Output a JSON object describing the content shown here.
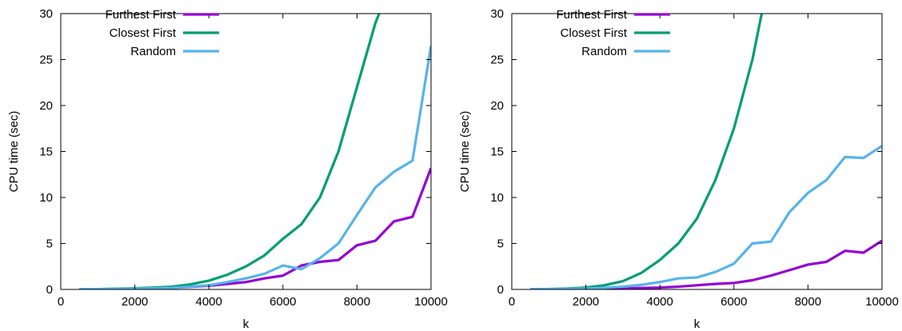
{
  "chart_data": [
    {
      "type": "line",
      "xlabel": "k",
      "ylabel": "CPU time (sec)",
      "xlim": [
        0,
        10000
      ],
      "ylim": [
        0,
        30
      ],
      "xticks": [
        "0",
        "2000",
        "4000",
        "6000",
        "8000",
        "10000"
      ],
      "yticks": [
        "0",
        "5",
        "10",
        "15",
        "20",
        "25",
        "30"
      ],
      "legend": "top-left",
      "grid": false,
      "series": [
        {
          "name": "Furthest First",
          "color": "#9400d3",
          "x": [
            500,
            1000,
            1500,
            2000,
            2500,
            3000,
            3500,
            4000,
            4500,
            5000,
            5500,
            6000,
            6500,
            7000,
            7500,
            8000,
            8500,
            9000,
            9500,
            10000
          ],
          "y": [
            0.02,
            0.03,
            0.05,
            0.08,
            0.12,
            0.18,
            0.28,
            0.4,
            0.6,
            0.8,
            1.2,
            1.5,
            2.6,
            3.0,
            3.2,
            4.8,
            5.3,
            7.4,
            7.9,
            13.2
          ]
        },
        {
          "name": "Closest First",
          "color": "#009e73",
          "x": [
            500,
            1000,
            1500,
            2000,
            2500,
            3000,
            3500,
            4000,
            4500,
            5000,
            5500,
            6000,
            6500,
            7000,
            7500,
            8000,
            8500,
            8600
          ],
          "y": [
            0.02,
            0.04,
            0.08,
            0.12,
            0.2,
            0.3,
            0.55,
            0.95,
            1.6,
            2.5,
            3.7,
            5.5,
            7.1,
            10.0,
            15.0,
            22.0,
            29.0,
            30.0
          ]
        },
        {
          "name": "Random",
          "color": "#56b4e9",
          "x": [
            500,
            1000,
            1500,
            2000,
            2500,
            3000,
            3500,
            4000,
            4500,
            5000,
            5500,
            6000,
            6500,
            7000,
            7500,
            8000,
            8500,
            9000,
            9500,
            10000
          ],
          "y": [
            0.02,
            0.03,
            0.05,
            0.08,
            0.12,
            0.18,
            0.3,
            0.45,
            0.8,
            1.2,
            1.7,
            2.6,
            2.2,
            3.4,
            5.0,
            8.1,
            11.1,
            12.8,
            14.0,
            26.5
          ]
        }
      ]
    },
    {
      "type": "line",
      "xlabel": "k",
      "ylabel": "CPU time (sec)",
      "xlim": [
        0,
        10000
      ],
      "ylim": [
        0,
        30
      ],
      "xticks": [
        "0",
        "2000",
        "4000",
        "6000",
        "8000",
        "10000"
      ],
      "yticks": [
        "0",
        "5",
        "10",
        "15",
        "20",
        "25",
        "30"
      ],
      "legend": "top-left",
      "grid": false,
      "series": [
        {
          "name": "Furthest First",
          "color": "#9400d3",
          "x": [
            500,
            1000,
            1500,
            2000,
            2500,
            3000,
            3500,
            4000,
            4500,
            5000,
            5500,
            6000,
            6500,
            7000,
            7500,
            8000,
            8500,
            9000,
            9500,
            10000
          ],
          "y": [
            0.01,
            0.02,
            0.03,
            0.05,
            0.08,
            0.1,
            0.15,
            0.2,
            0.3,
            0.45,
            0.6,
            0.7,
            1.0,
            1.5,
            2.1,
            2.7,
            3.0,
            4.2,
            4.0,
            5.3
          ]
        },
        {
          "name": "Closest First",
          "color": "#009e73",
          "x": [
            500,
            1000,
            1500,
            2000,
            2500,
            3000,
            3500,
            4000,
            4500,
            5000,
            5500,
            6000,
            6500,
            6750
          ],
          "y": [
            0.02,
            0.05,
            0.1,
            0.2,
            0.45,
            0.9,
            1.8,
            3.2,
            5.0,
            7.7,
            11.9,
            17.5,
            25.0,
            30.0
          ]
        },
        {
          "name": "Random",
          "color": "#56b4e9",
          "x": [
            500,
            1000,
            1500,
            2000,
            2500,
            3000,
            3500,
            4000,
            4500,
            5000,
            5500,
            6000,
            6500,
            6750,
            7000,
            7500,
            8000,
            8500,
            9000,
            9500,
            10000
          ],
          "y": [
            0.01,
            0.03,
            0.06,
            0.1,
            0.18,
            0.3,
            0.5,
            0.8,
            1.2,
            1.3,
            1.9,
            2.8,
            5.0,
            5.1,
            5.2,
            8.4,
            10.5,
            11.9,
            14.4,
            14.3,
            15.6
          ]
        }
      ]
    }
  ]
}
